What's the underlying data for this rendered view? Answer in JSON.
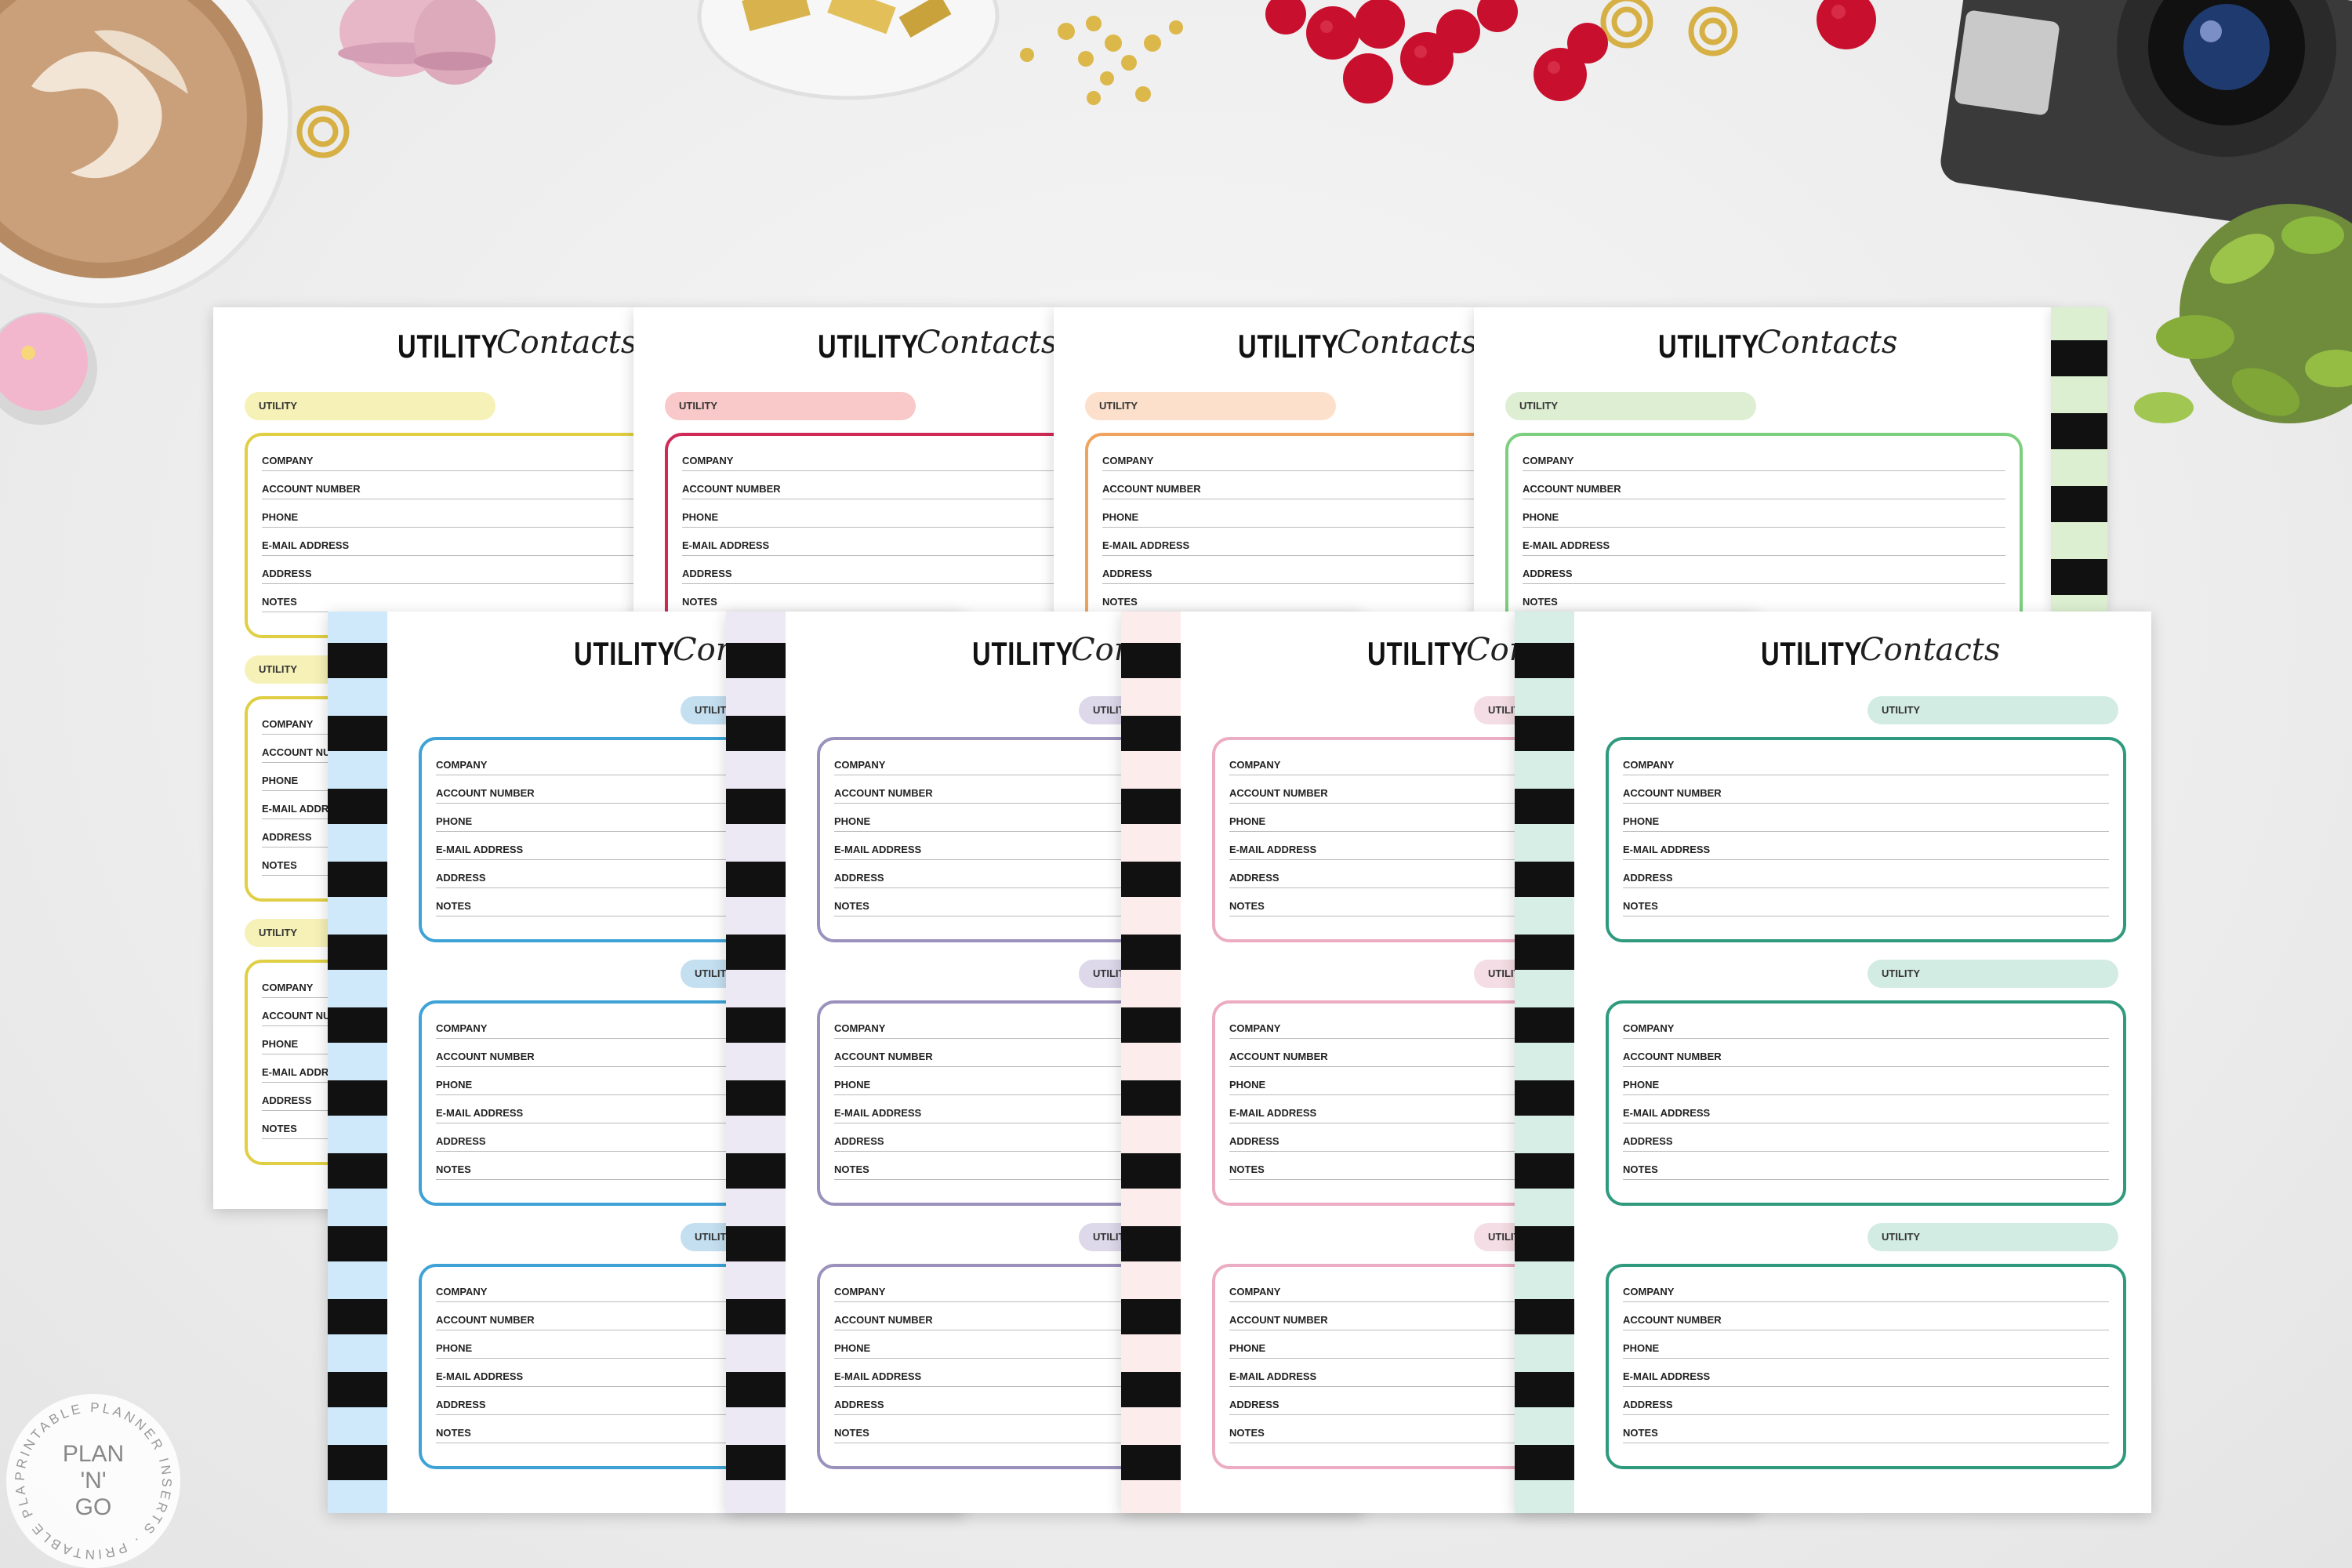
{
  "page": {
    "title": "UTILITY",
    "subtitle_script": "Contacts",
    "section_label": "UTILITY",
    "fields": [
      "COMPANY",
      "ACCOUNT NUMBER",
      "PHONE",
      "E-MAIL ADDRESS",
      "ADDRESS",
      "NOTES"
    ]
  },
  "back_row": [
    {
      "name": "yellow",
      "accent": "#e0cf44",
      "pill": "#f6f1b7"
    },
    {
      "name": "red",
      "accent": "#cf2a56",
      "pill": "#f9c8c8"
    },
    {
      "name": "orange",
      "accent": "#f0a35e",
      "pill": "#fde0cb"
    },
    {
      "name": "green",
      "accent": "#7ccf7e",
      "pill": "#ddeed3"
    }
  ],
  "front_row": [
    {
      "name": "blue",
      "accent": "#3ea2d6",
      "pill": "#c4dff0",
      "stripe": "#cfe9fb"
    },
    {
      "name": "lavender",
      "accent": "#9b91bd",
      "pill": "#ddd8ea",
      "stripe": "#ece8f4"
    },
    {
      "name": "pink",
      "accent": "#ecacc3",
      "pill": "#f4dde4",
      "stripe": "#fdecec"
    },
    {
      "name": "teal",
      "accent": "#2f9a7e",
      "pill": "#d3ece3",
      "stripe": "#d7eee7"
    }
  ],
  "logo": {
    "ring_text": "PRINTABLE PLANNER INSERTS",
    "lines": [
      "PLAN",
      "'N'",
      "GO"
    ]
  },
  "props": [
    "coffee-cup",
    "macarons",
    "gold-binder-clips",
    "gold-sequins",
    "raspberries",
    "camera",
    "succulent",
    "candle",
    "gold-paperclips"
  ]
}
